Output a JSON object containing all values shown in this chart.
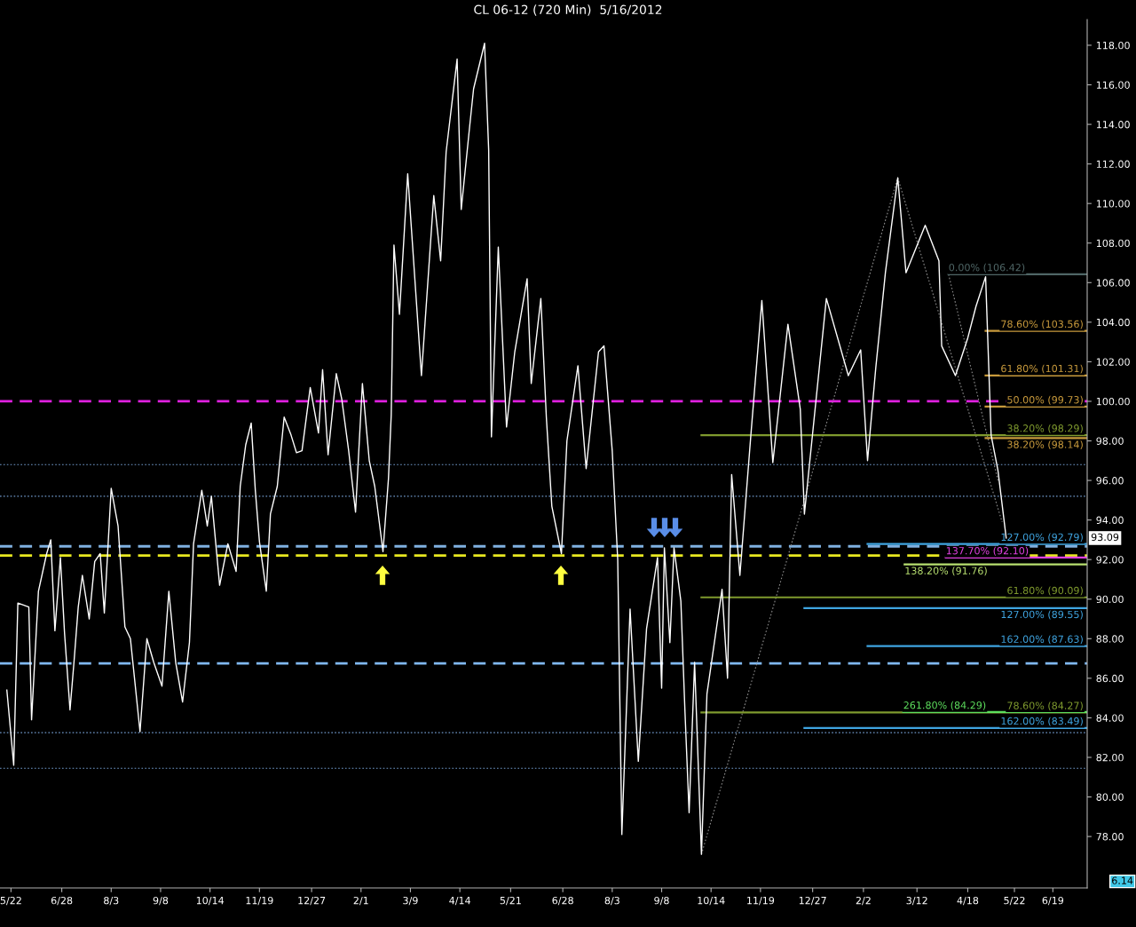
{
  "chart_data": {
    "type": "line",
    "title": "CL 06-12 (720 Min)  5/16/2012",
    "xlim": [
      "2010-05-14",
      "2012-07-14"
    ],
    "ylim": [
      75.4,
      119.3
    ],
    "xticks": [
      {
        "value": "2010-05-22",
        "label": "5/22"
      },
      {
        "value": "2010-06-28",
        "label": "6/28"
      },
      {
        "value": "2010-08-03",
        "label": "8/3"
      },
      {
        "value": "2010-09-08",
        "label": "9/8"
      },
      {
        "value": "2010-10-14",
        "label": "10/14"
      },
      {
        "value": "2010-11-19",
        "label": "11/19"
      },
      {
        "value": "2010-12-27",
        "label": "12/27"
      },
      {
        "value": "2011-02-01",
        "label": "2/1"
      },
      {
        "value": "2011-03-09",
        "label": "3/9"
      },
      {
        "value": "2011-04-14",
        "label": "4/14"
      },
      {
        "value": "2011-05-21",
        "label": "5/21"
      },
      {
        "value": "2011-06-28",
        "label": "6/28"
      },
      {
        "value": "2011-08-03",
        "label": "8/3"
      },
      {
        "value": "2011-09-08",
        "label": "9/8"
      },
      {
        "value": "2011-10-14",
        "label": "10/14"
      },
      {
        "value": "2011-11-19",
        "label": "11/19"
      },
      {
        "value": "2011-12-27",
        "label": "12/27"
      },
      {
        "value": "2012-02-02",
        "label": "2/2"
      },
      {
        "value": "2012-03-12",
        "label": "3/12"
      },
      {
        "value": "2012-04-18",
        "label": "4/18"
      },
      {
        "value": "2012-05-22",
        "label": "5/22"
      },
      {
        "value": "2012-06-19",
        "label": "6/19"
      }
    ],
    "yticks": [
      {
        "value": 78,
        "label": "78.00"
      },
      {
        "value": 80,
        "label": "80.00"
      },
      {
        "value": 82,
        "label": "82.00"
      },
      {
        "value": 84,
        "label": "84.00"
      },
      {
        "value": 86,
        "label": "86.00"
      },
      {
        "value": 88,
        "label": "88.00"
      },
      {
        "value": 90,
        "label": "90.00"
      },
      {
        "value": 92,
        "label": "92.00"
      },
      {
        "value": 94,
        "label": "94.00"
      },
      {
        "value": 96,
        "label": "96.00"
      },
      {
        "value": 98,
        "label": "98.00"
      },
      {
        "value": 100,
        "label": "100.00"
      },
      {
        "value": 102,
        "label": "102.00"
      },
      {
        "value": 104,
        "label": "104.00"
      },
      {
        "value": 106,
        "label": "106.00"
      },
      {
        "value": 108,
        "label": "108.00"
      },
      {
        "value": 110,
        "label": "110.00"
      },
      {
        "value": 112,
        "label": "112.00"
      },
      {
        "value": 114,
        "label": "114.00"
      },
      {
        "value": 116,
        "label": "116.00"
      },
      {
        "value": 118,
        "label": "118.00"
      }
    ],
    "grid": false,
    "series": [
      {
        "color": "#ffffff",
        "x": [
          "2010-05-19",
          "2010-05-24",
          "2010-05-27",
          "2010-06-04",
          "2010-06-06",
          "2010-06-11",
          "2010-06-17",
          "2010-06-20",
          "2010-06-23",
          "2010-06-27",
          "2010-06-30",
          "2010-07-04",
          "2010-07-07",
          "2010-07-10",
          "2010-07-13",
          "2010-07-18",
          "2010-07-22",
          "2010-07-26",
          "2010-07-29",
          "2010-08-03",
          "2010-08-08",
          "2010-08-13",
          "2010-08-17",
          "2010-08-24",
          "2010-08-29",
          "2010-09-03",
          "2010-09-09",
          "2010-09-14",
          "2010-09-19",
          "2010-09-24",
          "2010-09-29",
          "2010-10-02",
          "2010-10-08",
          "2010-10-12",
          "2010-10-15",
          "2010-10-21",
          "2010-10-27",
          "2010-11-02",
          "2010-11-05",
          "2010-11-09",
          "2010-11-13",
          "2010-11-16",
          "2010-11-19",
          "2010-11-24",
          "2010-11-27",
          "2010-12-02",
          "2010-12-07",
          "2010-12-12",
          "2010-12-16",
          "2010-12-20",
          "2010-12-26",
          "2011-01-01",
          "2011-01-04",
          "2011-01-08",
          "2011-01-14",
          "2011-01-18",
          "2011-01-23",
          "2011-01-28",
          "2011-02-02",
          "2011-02-07",
          "2011-02-11",
          "2011-02-17",
          "2011-02-21",
          "2011-02-23",
          "2011-02-25",
          "2011-03-01",
          "2011-03-07",
          "2011-03-17",
          "2011-03-26",
          "2011-03-31",
          "2011-04-04",
          "2011-04-12",
          "2011-04-15",
          "2011-04-21",
          "2011-04-24",
          "2011-05-02",
          "2011-05-05",
          "2011-05-07",
          "2011-05-12",
          "2011-05-18",
          "2011-05-24",
          "2011-06-02",
          "2011-06-05",
          "2011-06-12",
          "2011-06-16",
          "2011-06-20",
          "2011-06-27",
          "2011-07-01",
          "2011-07-09",
          "2011-07-15",
          "2011-07-24",
          "2011-07-28",
          "2011-08-03",
          "2011-08-07",
          "2011-08-10",
          "2011-08-16",
          "2011-08-22",
          "2011-08-28",
          "2011-09-05",
          "2011-09-08",
          "2011-09-10",
          "2011-09-14",
          "2011-09-17",
          "2011-09-22",
          "2011-09-25",
          "2011-09-28",
          "2011-10-02",
          "2011-10-07",
          "2011-10-11",
          "2011-10-22",
          "2011-10-26",
          "2011-10-29",
          "2011-11-04",
          "2011-11-12",
          "2011-11-20",
          "2011-11-28",
          "2011-12-09",
          "2011-12-18",
          "2011-12-21",
          "2012-01-06",
          "2012-01-22",
          "2012-01-31",
          "2012-02-05",
          "2012-02-11",
          "2012-02-18",
          "2012-02-27",
          "2012-03-04",
          "2012-03-18",
          "2012-03-28",
          "2012-03-30",
          "2012-04-09",
          "2012-04-18",
          "2012-04-24",
          "2012-05-01",
          "2012-05-05",
          "2012-05-10",
          "2012-05-16"
        ],
        "values": [
          85.4,
          81.6,
          89.8,
          89.6,
          83.9,
          90.4,
          92.3,
          93.0,
          88.4,
          92.1,
          88.3,
          84.4,
          86.9,
          89.6,
          91.2,
          89.0,
          91.9,
          92.3,
          89.3,
          95.6,
          93.7,
          88.6,
          88.0,
          83.3,
          88.0,
          86.8,
          85.6,
          90.4,
          86.8,
          84.8,
          87.8,
          92.8,
          95.5,
          93.7,
          95.2,
          90.7,
          92.8,
          91.4,
          95.7,
          97.8,
          98.9,
          95.5,
          92.9,
          90.4,
          94.3,
          95.7,
          99.2,
          98.3,
          97.4,
          97.5,
          100.7,
          98.4,
          101.6,
          97.3,
          101.4,
          100.1,
          97.5,
          94.4,
          100.9,
          97.0,
          95.7,
          92.4,
          96.1,
          99.3,
          107.9,
          104.4,
          111.5,
          101.3,
          110.4,
          107.1,
          112.6,
          117.3,
          109.7,
          113.8,
          115.8,
          118.1,
          112.7,
          98.2,
          107.8,
          98.7,
          102.5,
          106.2,
          100.9,
          105.2,
          99.2,
          94.7,
          92.3,
          98.0,
          101.8,
          96.6,
          102.5,
          102.8,
          97.5,
          92.0,
          78.1,
          89.5,
          81.8,
          88.5,
          92.1,
          85.5,
          92.6,
          87.8,
          92.6,
          89.9,
          84.3,
          79.2,
          86.8,
          77.1,
          85.2,
          90.5,
          86.0,
          96.3,
          91.2,
          98.3,
          105.1,
          96.9,
          103.9,
          99.6,
          94.3,
          105.2,
          101.3,
          102.6,
          97.0,
          101.7,
          106.5,
          111.3,
          106.5,
          108.9,
          107.1,
          102.8,
          101.3,
          103.2,
          104.8,
          106.3,
          98.3,
          96.5,
          93.09
        ]
      },
      {
        "type": "line",
        "color": "#8a8a8a",
        "line_style": "dotted",
        "x": [
          "2011-10-07",
          "2012-02-27"
        ],
        "values": [
          77.1,
          111.3
        ]
      },
      {
        "type": "line",
        "color": "#8a8a8a",
        "line_style": "dotted",
        "x": [
          "2012-02-27",
          "2012-05-13"
        ],
        "values": [
          111.3,
          93.9
        ]
      },
      {
        "type": "line",
        "color": "#8a8a8a",
        "line_style": "dotted",
        "x": [
          "2012-04-04",
          "2012-05-10"
        ],
        "values": [
          106.42,
          96.0
        ]
      },
      {
        "type": "line",
        "color": "#4f6666",
        "x": [
          "2012-04-04",
          "2012-07-14"
        ],
        "values": [
          106.42,
          106.42
        ]
      },
      {
        "type": "line",
        "color": "#c89a3c",
        "x": [
          "2012-05-01",
          "2012-07-14"
        ],
        "values": [
          103.56,
          103.56
        ]
      },
      {
        "type": "line",
        "color": "#c89a3c",
        "x": [
          "2012-05-01",
          "2012-07-14"
        ],
        "values": [
          101.31,
          101.31
        ]
      },
      {
        "type": "line",
        "color": "#c89a3c",
        "x": [
          "2012-05-01",
          "2012-07-14"
        ],
        "values": [
          99.73,
          99.73
        ]
      },
      {
        "type": "line",
        "color": "#c89a3c",
        "x": [
          "2012-05-01",
          "2012-07-14"
        ],
        "values": [
          98.14,
          98.14
        ]
      },
      {
        "type": "line",
        "color": "#7f9a2e",
        "x": [
          "2011-10-07",
          "2012-07-14"
        ],
        "values": [
          98.29,
          98.29
        ]
      },
      {
        "type": "line",
        "color": "#7f9a2e",
        "x": [
          "2011-10-07",
          "2012-07-14"
        ],
        "values": [
          90.09,
          90.09
        ]
      },
      {
        "type": "line",
        "color": "#7f9a2e",
        "x": [
          "2011-10-07",
          "2012-07-14"
        ],
        "values": [
          84.27,
          84.27
        ]
      },
      {
        "type": "line",
        "color": "#3fa4e0",
        "x": [
          "2012-02-05",
          "2012-07-14"
        ],
        "values": [
          92.79,
          92.79
        ]
      },
      {
        "type": "line",
        "color": "#3fa4e0",
        "x": [
          "2012-02-05",
          "2012-07-14"
        ],
        "values": [
          87.63,
          87.63
        ]
      },
      {
        "type": "line",
        "color": "#3fa4e0",
        "x": [
          "2011-12-21",
          "2012-07-14"
        ],
        "values": [
          89.55,
          89.55
        ]
      },
      {
        "type": "line",
        "color": "#3fa4e0",
        "x": [
          "2011-12-21",
          "2012-07-14"
        ],
        "values": [
          83.49,
          83.49
        ]
      },
      {
        "type": "line",
        "color": "#e040e0",
        "x": [
          "2012-04-02",
          "2012-07-14"
        ],
        "values": [
          92.1,
          92.1
        ]
      },
      {
        "type": "line",
        "color": "#b8e070",
        "x": [
          "2012-03-03",
          "2012-07-14"
        ],
        "values": [
          91.76,
          91.76
        ]
      },
      {
        "type": "line",
        "color": "#5ee05e",
        "x": [
          "2012-03-02",
          "2012-07-14"
        ],
        "values": [
          84.29,
          84.29
        ]
      }
    ],
    "ref_lines": [
      {
        "axis": "y",
        "value": 100.0,
        "color": "#e020e0",
        "line_style": "dashed"
      },
      {
        "axis": "y",
        "value": 96.8,
        "color": "#6f97c8",
        "line_style": "dotted"
      },
      {
        "axis": "y",
        "value": 95.2,
        "color": "#6f97c8",
        "line_style": "dotted"
      },
      {
        "axis": "y",
        "value": 92.67,
        "color": "#7fb0e0",
        "line_style": "dashed"
      },
      {
        "axis": "y",
        "value": 92.2,
        "color": "#e8e820",
        "line_style": "dashed"
      },
      {
        "axis": "y",
        "value": 86.75,
        "color": "#80b8f0",
        "line_style": "dashed"
      },
      {
        "axis": "y",
        "value": 83.25,
        "color": "#6f97c8",
        "line_style": "dotted"
      },
      {
        "axis": "y",
        "value": 81.45,
        "color": "#6f97c8",
        "line_style": "dotted"
      }
    ],
    "annotations": [
      {
        "text": "0.00% (106.42)",
        "x": "2012-04-04",
        "y": 106.42
      },
      {
        "text": "78.60% (103.56)",
        "x": "2012-07-14",
        "y": 103.56
      },
      {
        "text": "61.80% (101.31)",
        "x": "2012-07-14",
        "y": 101.31
      },
      {
        "text": "50.00% (99.73)",
        "x": "2012-07-14",
        "y": 99.73
      },
      {
        "text": "38.20% (98.29)",
        "x": "2012-07-14",
        "y": 98.29
      },
      {
        "text": "38.20% (98.14)",
        "x": "2012-07-14",
        "y": 98.14
      },
      {
        "text": "127.00% (92.79)",
        "x": "2012-07-14",
        "y": 92.79
      },
      {
        "text": "137.70% (92.10)",
        "x": "2012-04-02",
        "y": 92.1
      },
      {
        "text": "138.20% (91.76)",
        "x": "2012-03-03",
        "y": 91.76
      },
      {
        "text": "61.80% (90.09)",
        "x": "2012-07-14",
        "y": 90.09
      },
      {
        "text": "127.00% (89.55)",
        "x": "2012-07-14",
        "y": 89.55
      },
      {
        "text": "162.00% (87.63)",
        "x": "2012-07-14",
        "y": 87.63
      },
      {
        "text": "261.80% (84.29)",
        "x": "2012-03-02",
        "y": 84.29
      },
      {
        "text": "78.60% (84.27)",
        "x": "2012-07-14",
        "y": 84.27
      },
      {
        "text": "162.00% (83.49)",
        "x": "2012-07-14",
        "y": 83.49
      },
      {
        "text": "93.09",
        "y": 93.09
      },
      "6.14"
    ]
  }
}
